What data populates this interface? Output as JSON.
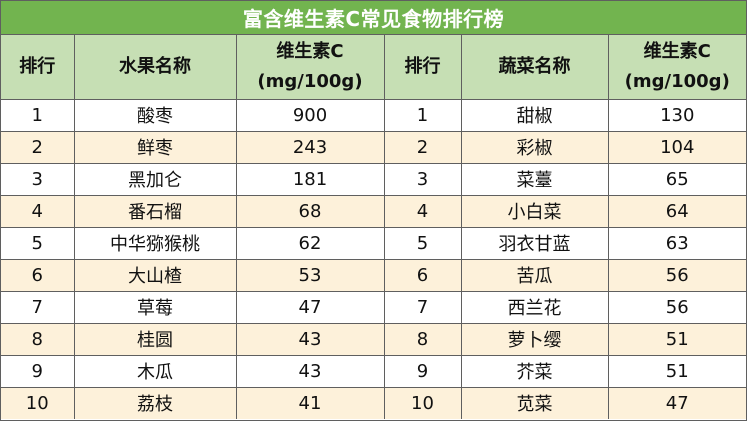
{
  "title": "富含维生素C常见食物排行榜",
  "headers": {
    "rank1": "排行",
    "fruit_name": "水果名称",
    "fruit_vc_line1": "维生素C",
    "fruit_vc_line2": "(mg/100g)",
    "rank2": "排行",
    "veg_name": "蔬菜名称",
    "veg_vc_line1": "维生素C",
    "veg_vc_line2": "(mg/100g)"
  },
  "rows": [
    {
      "fruit_rank": "1",
      "fruit": "酸枣",
      "fruit_vc": "900",
      "veg_rank": "1",
      "veg": "甜椒",
      "veg_vc": "130"
    },
    {
      "fruit_rank": "2",
      "fruit": "鲜枣",
      "fruit_vc": "243",
      "veg_rank": "2",
      "veg": "彩椒",
      "veg_vc": "104"
    },
    {
      "fruit_rank": "3",
      "fruit": "黑加仑",
      "fruit_vc": "181",
      "veg_rank": "3",
      "veg": "菜薹",
      "veg_vc": "65"
    },
    {
      "fruit_rank": "4",
      "fruit": "番石榴",
      "fruit_vc": "68",
      "veg_rank": "4",
      "veg": "小白菜",
      "veg_vc": "64"
    },
    {
      "fruit_rank": "5",
      "fruit": "中华猕猴桃",
      "fruit_vc": "62",
      "veg_rank": "5",
      "veg": "羽衣甘蓝",
      "veg_vc": "63"
    },
    {
      "fruit_rank": "6",
      "fruit": "大山楂",
      "fruit_vc": "53",
      "veg_rank": "6",
      "veg": "苦瓜",
      "veg_vc": "56"
    },
    {
      "fruit_rank": "7",
      "fruit": "草莓",
      "fruit_vc": "47",
      "veg_rank": "7",
      "veg": "西兰花",
      "veg_vc": "56"
    },
    {
      "fruit_rank": "8",
      "fruit": "桂圆",
      "fruit_vc": "43",
      "veg_rank": "8",
      "veg": "萝卜缨",
      "veg_vc": "51"
    },
    {
      "fruit_rank": "9",
      "fruit": "木瓜",
      "fruit_vc": "43",
      "veg_rank": "9",
      "veg": "芥菜",
      "veg_vc": "51"
    },
    {
      "fruit_rank": "10",
      "fruit": "荔枝",
      "fruit_vc": "41",
      "veg_rank": "10",
      "veg": "苋菜",
      "veg_vc": "47"
    }
  ],
  "colors": {
    "title_bg": "#72b44f",
    "header_bg": "#c6dfb4",
    "stripe_bg": "#fdf1da",
    "border": "#5f5f5f"
  }
}
